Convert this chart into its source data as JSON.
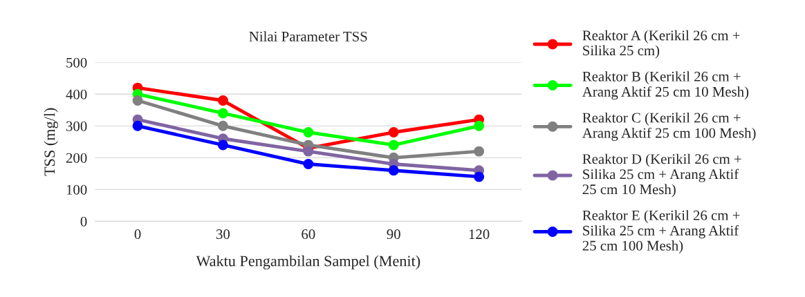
{
  "chart_data": {
    "type": "line",
    "title": "Nilai Parameter TSS",
    "xlabel": "Waktu Pengambilan Sampel (Menit)",
    "ylabel": "TSS (mg/l)",
    "categories": [
      "0",
      "30",
      "60",
      "90",
      "120"
    ],
    "series": [
      {
        "name": "Reaktor A (Kerikil 26 cm + Silika 25 cm)",
        "color": "#ff0000",
        "values": [
          420,
          380,
          230,
          280,
          320
        ]
      },
      {
        "name": "Reaktor B (Kerikil 26 cm + Arang Aktif 25 cm 10 Mesh)",
        "color": "#00ff00",
        "values": [
          400,
          340,
          280,
          240,
          300
        ]
      },
      {
        "name": "Reaktor C (Kerikil 26 cm + Arang Aktif 25 cm 100 Mesh)",
        "color": "#808080",
        "values": [
          380,
          300,
          240,
          200,
          220
        ]
      },
      {
        "name": "Reaktor D (Kerikil 26 cm + Silika 25 cm + Arang Aktif 25 cm 10 Mesh)",
        "color": "#8064a2",
        "values": [
          320,
          260,
          220,
          180,
          160
        ]
      },
      {
        "name": "Reaktor E (Kerikil 26 cm + Silika 25 cm + Arang Aktif 25 cm 100 Mesh)",
        "color": "#0000ff",
        "values": [
          300,
          240,
          180,
          160,
          140
        ]
      }
    ],
    "ylim": [
      0,
      500
    ],
    "yticks": [
      0,
      100,
      200,
      300,
      400,
      500
    ],
    "grid": "y",
    "legend": "right",
    "marker": "circle",
    "line_style": "solid"
  }
}
